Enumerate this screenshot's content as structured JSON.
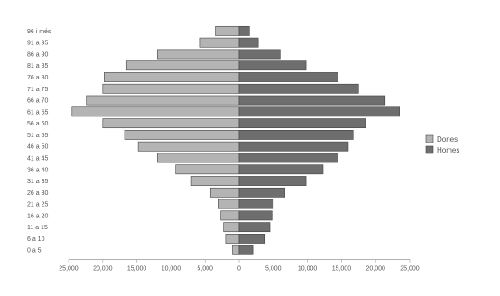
{
  "chart_data": {
    "type": "bar",
    "orientation": "horizontal",
    "title": "",
    "xlabel": "",
    "ylabel": "",
    "categories": [
      "0 a 5",
      "6 a 10",
      "11 a 15",
      "16 a 20",
      "21 a 25",
      "26 a 30",
      "31 a 35",
      "36 a 40",
      "41 a 45",
      "46 a 50",
      "51 a 55",
      "56 a 60",
      "61 a 65",
      "66 a 70",
      "71 a 75",
      "76 a 80",
      "81 a 85",
      "86 a 90",
      "91 a 95",
      "96 i més"
    ],
    "series": [
      {
        "name": "Dones",
        "color": "#b4b4b4",
        "side": "left",
        "values": [
          1000,
          2000,
          2300,
          2700,
          3000,
          4200,
          7000,
          9300,
          12000,
          14800,
          16800,
          20000,
          24500,
          22400,
          20000,
          19800,
          16500,
          12000,
          5700,
          3500
        ]
      },
      {
        "name": "Homes",
        "color": "#6e6e6e",
        "side": "right",
        "values": [
          2000,
          3800,
          4500,
          4800,
          5000,
          6700,
          9800,
          12300,
          14500,
          16000,
          16700,
          18500,
          23500,
          21400,
          17500,
          14500,
          9800,
          6000,
          2800,
          1500
        ]
      }
    ],
    "xlim": [
      -25000,
      25000
    ],
    "x_ticks": [
      "25,000",
      "20,000",
      "15,000",
      "10,000",
      "5,000",
      "0",
      "5,000",
      "10,000",
      "15,000",
      "20,000",
      "25,000"
    ],
    "grid": false,
    "legend_position": "right"
  }
}
